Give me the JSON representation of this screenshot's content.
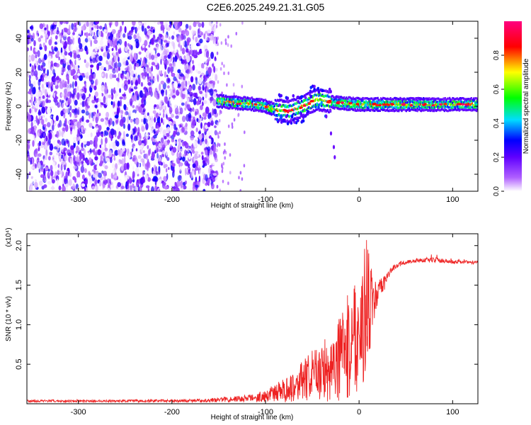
{
  "title": "C2E6.2025.249.21.31.G05",
  "chart_data": [
    {
      "type": "heatmap",
      "name": "spectrogram",
      "xlabel": "Height of straight line (km)",
      "ylabel": "Frequency (Hz)",
      "xlim": [
        -355,
        127
      ],
      "ylim": [
        -50,
        50
      ],
      "xticks": [
        -300,
        -200,
        -100,
        0,
        100
      ],
      "xtick_labels": [
        "-300",
        "-200",
        "-100",
        "0",
        "100"
      ],
      "yticks": [
        -40,
        -20,
        0,
        20,
        40
      ],
      "ytick_labels": [
        "-40",
        "-20",
        "0",
        "20",
        "40"
      ],
      "noise_region": {
        "x_from": -355,
        "x_to": -152,
        "freq_from": -50,
        "freq_to": 50,
        "amplitude_range": [
          0.0,
          0.3
        ]
      },
      "transition_region": {
        "x_from": -152,
        "x_to": -120,
        "note": "sparse faint points"
      },
      "signal_ridge": [
        {
          "x": -150,
          "freq": 3
        },
        {
          "x": -130,
          "freq": 2
        },
        {
          "x": -110,
          "freq": 1
        },
        {
          "x": -100,
          "freq": 0
        },
        {
          "x": -90,
          "freq": -2
        },
        {
          "x": -75,
          "freq": -3
        },
        {
          "x": -60,
          "freq": 0
        },
        {
          "x": -45,
          "freq": 4
        },
        {
          "x": -35,
          "freq": 3
        },
        {
          "x": -20,
          "freq": 2
        },
        {
          "x": 0,
          "freq": 1
        },
        {
          "x": 40,
          "freq": 1
        },
        {
          "x": 90,
          "freq": 1
        },
        {
          "x": 127,
          "freq": 1
        }
      ],
      "secondary_trace": [
        {
          "x": -40,
          "freq": 2
        },
        {
          "x": -35,
          "freq": -6
        },
        {
          "x": -30,
          "freq": -16
        },
        {
          "x": -27,
          "freq": -24
        },
        {
          "x": -26,
          "freq": -30
        }
      ],
      "colorbar": {
        "label": "Normalized spectral amplitude",
        "range": [
          0.0,
          1.0
        ],
        "ticks": [
          0.0,
          0.2,
          0.4,
          0.6,
          0.8
        ],
        "tick_labels": [
          "0.0",
          "0.2",
          "0.4",
          "0.6",
          "0.8"
        ],
        "colors": [
          "#ffffff",
          "#7a00ff",
          "#0000ff",
          "#00ffff",
          "#00ff00",
          "#ffff00",
          "#ff0000",
          "#ff00aa"
        ]
      }
    },
    {
      "type": "line",
      "name": "snr",
      "xlabel": "Height of straight line (km)",
      "ylabel": "SNR (10 * v/v)",
      "y_multiplier": "(x10⁴)",
      "xlim": [
        -355,
        127
      ],
      "ylim": [
        0.0,
        2.15
      ],
      "xticks": [
        -300,
        -200,
        -100,
        0,
        100
      ],
      "xtick_labels": [
        "-300",
        "-200",
        "-100",
        "0",
        "100"
      ],
      "yticks": [
        0.5,
        1.0,
        1.5,
        2.0
      ],
      "ytick_labels": [
        "0.5",
        "1.0",
        "1.5",
        "2.0"
      ],
      "color": "#ee2222",
      "series": [
        {
          "name": "SNR envelope",
          "x": [
            -355,
            -300,
            -250,
            -200,
            -170,
            -150,
            -130,
            -110,
            -100,
            -90,
            -80,
            -70,
            -60,
            -50,
            -40,
            -30,
            -20,
            -10,
            -5,
            0,
            5,
            8,
            10,
            15,
            20,
            25,
            30,
            35,
            40,
            50,
            60,
            80,
            100,
            127
          ],
          "low": [
            0.02,
            0.02,
            0.02,
            0.02,
            0.02,
            0.02,
            0.02,
            0.02,
            0.02,
            0.02,
            0.02,
            0.02,
            0.02,
            0.02,
            0.02,
            0.02,
            0.02,
            0.02,
            0.02,
            0.25,
            0.2,
            0.38,
            0.55,
            0.95,
            1.2,
            1.35,
            1.5,
            1.6,
            1.67,
            1.72,
            1.74,
            1.74,
            1.73,
            1.74
          ],
          "high": [
            0.05,
            0.05,
            0.05,
            0.055,
            0.06,
            0.08,
            0.1,
            0.13,
            0.18,
            0.25,
            0.32,
            0.42,
            0.55,
            0.68,
            0.78,
            0.92,
            1.12,
            1.45,
            1.65,
            1.6,
            1.9,
            2.15,
            1.95,
            1.6,
            1.55,
            1.6,
            1.68,
            1.78,
            1.8,
            1.84,
            1.86,
            1.88,
            1.84,
            1.82
          ]
        }
      ]
    }
  ]
}
